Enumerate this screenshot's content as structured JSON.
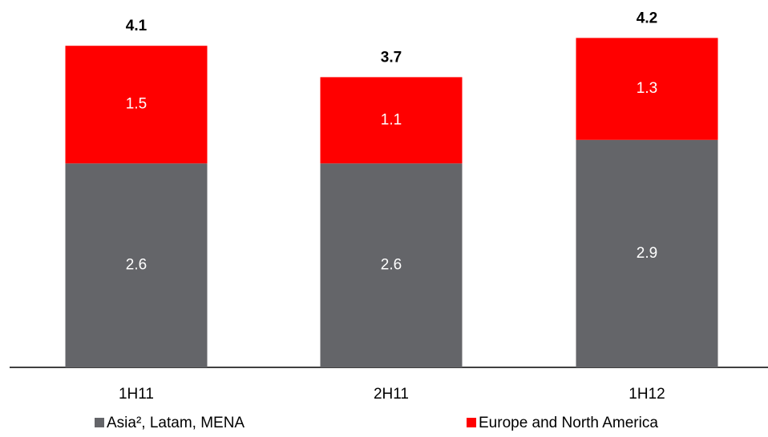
{
  "chart_data": {
    "type": "stacked_bar",
    "categories": [
      "1H11",
      "2H11",
      "1H12"
    ],
    "series": [
      {
        "name": "Asia², Latam, MENA",
        "color": "#646569",
        "values": [
          2.6,
          2.6,
          2.9
        ]
      },
      {
        "name": "Europe and North America",
        "color": "#ff0000",
        "values": [
          1.5,
          1.1,
          1.3
        ]
      }
    ],
    "totals": [
      4.1,
      3.7,
      4.2
    ]
  }
}
